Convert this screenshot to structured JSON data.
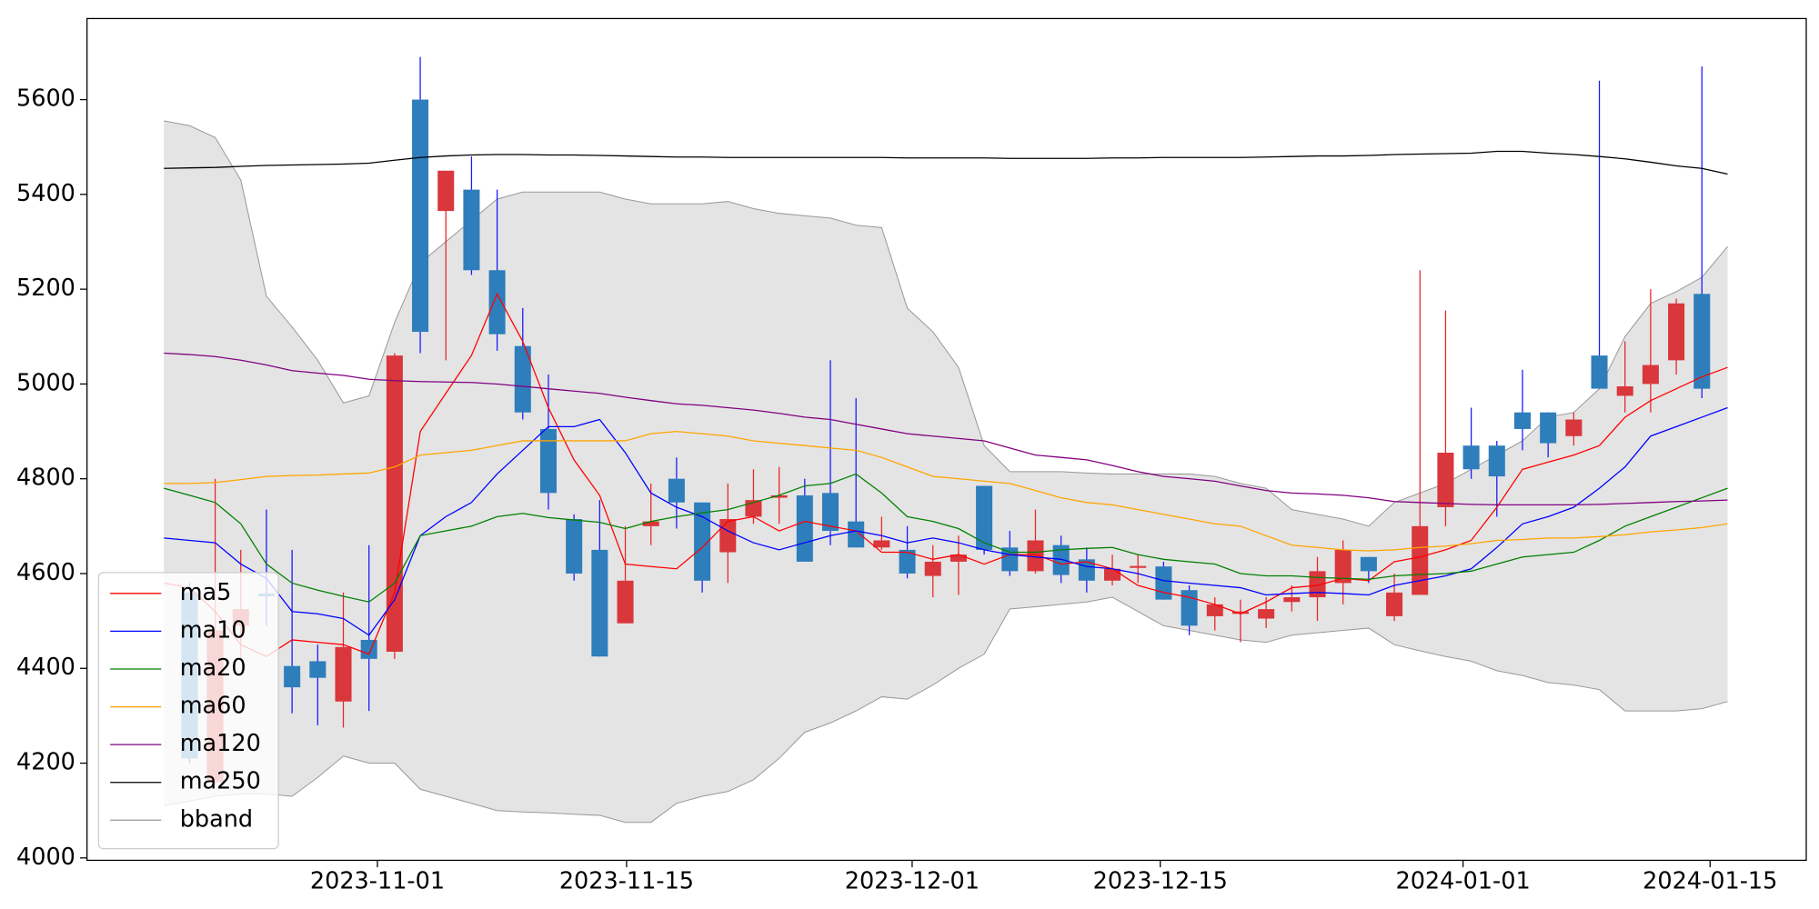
{
  "chart_data": {
    "type": "candlestick",
    "x": [
      0,
      1,
      2,
      3,
      4,
      5,
      6,
      7,
      8,
      9,
      10,
      11,
      12,
      13,
      14,
      15,
      16,
      17,
      18,
      19,
      20,
      21,
      22,
      23,
      24,
      25,
      26,
      27,
      28,
      29,
      30,
      31,
      32,
      33,
      34,
      35,
      36,
      37,
      38,
      39,
      40,
      41,
      42,
      43,
      44,
      45,
      46,
      47,
      48,
      49,
      50,
      51,
      52,
      53,
      54,
      55,
      56,
      57,
      58,
      59,
      60,
      61
    ],
    "xlim": [
      -3,
      64.07
    ],
    "xticks": [
      {
        "value": 8.33,
        "label": "2023-11-01"
      },
      {
        "value": 18.05,
        "label": "2023-11-15"
      },
      {
        "value": 29.19,
        "label": "2023-12-01"
      },
      {
        "value": 38.87,
        "label": "2023-12-15"
      },
      {
        "value": 50.68,
        "label": "2024-01-01"
      },
      {
        "value": 60.32,
        "label": "2024-01-15"
      }
    ],
    "ylim": [
      3995,
      5771
    ],
    "yticks": [
      4000,
      4200,
      4400,
      4600,
      4800,
      5000,
      5200,
      5400,
      5600
    ],
    "up_color": "#d9373b",
    "down_color": "#2e7ebb",
    "open": [
      null,
      4560,
      4160,
      4490,
      4558,
      4405,
      4415,
      4330,
      4460,
      4435,
      5600,
      5365,
      5410,
      5240,
      5080,
      4905,
      4715,
      4650,
      4495,
      4700,
      4800,
      4750,
      4645,
      4720,
      4760,
      4765,
      4770,
      4710,
      4655,
      4650,
      4595,
      4625,
      4785,
      4655,
      4605,
      4660,
      4630,
      4585,
      4612,
      4615,
      4565,
      4510,
      4515,
      4505,
      4540,
      4550,
      4580,
      4635,
      4510,
      4555,
      4740,
      4870,
      4870,
      4940,
      4940,
      4890,
      5060,
      4975,
      5000,
      5050,
      5190,
      null
    ],
    "high": [
      null,
      4580,
      4800,
      4650,
      4735,
      4650,
      4450,
      4560,
      4660,
      5065,
      5690,
      5450,
      5480,
      5410,
      5160,
      5020,
      4725,
      4755,
      4700,
      4790,
      4845,
      4750,
      4790,
      4820,
      4825,
      4800,
      5050,
      4970,
      4720,
      4700,
      4660,
      4680,
      4785,
      4690,
      4735,
      4680,
      4655,
      4640,
      4640,
      4625,
      4575,
      4550,
      4545,
      4550,
      4575,
      4635,
      4670,
      4635,
      4600,
      5240,
      5155,
      4950,
      4880,
      5030,
      4940,
      4940,
      5640,
      5090,
      5200,
      5180,
      5670,
      null
    ],
    "low": [
      null,
      4200,
      4155,
      4420,
      4490,
      4305,
      4280,
      4275,
      4310,
      4420,
      5065,
      5050,
      5230,
      5070,
      4925,
      4735,
      4585,
      4425,
      4495,
      4660,
      4695,
      4560,
      4580,
      4705,
      4705,
      4625,
      4660,
      4655,
      4650,
      4590,
      4550,
      4555,
      4640,
      4595,
      4600,
      4580,
      4560,
      4575,
      4580,
      4545,
      4470,
      4480,
      4455,
      4485,
      4520,
      4500,
      4535,
      4580,
      4500,
      4555,
      4700,
      4800,
      4720,
      4860,
      4845,
      4870,
      4990,
      4940,
      4940,
      5020,
      4970,
      null
    ],
    "close": [
      null,
      4210,
      4480,
      4525,
      4552,
      4360,
      4380,
      4445,
      4420,
      5060,
      5110,
      5450,
      5240,
      5105,
      4940,
      4770,
      4600,
      4425,
      4585,
      4710,
      4750,
      4585,
      4715,
      4755,
      4765,
      4625,
      4690,
      4655,
      4670,
      4600,
      4625,
      4640,
      4650,
      4605,
      4670,
      4597,
      4585,
      4610,
      4616,
      4545,
      4490,
      4535,
      4520,
      4525,
      4550,
      4605,
      4650,
      4605,
      4560,
      4700,
      4855,
      4820,
      4805,
      4905,
      4875,
      4925,
      4990,
      4995,
      5040,
      5170,
      4990,
      null
    ],
    "series": [
      {
        "name": "ma5",
        "color": "#ff0000",
        "values": [
          4580,
          4570,
          4520,
          4450,
          4425,
          4460,
          4455,
          4450,
          4430,
          4560,
          4900,
          4980,
          5060,
          5190,
          5090,
          4950,
          4840,
          4765,
          4620,
          4615,
          4610,
          4655,
          4710,
          4720,
          4690,
          4710,
          4700,
          4690,
          4645,
          4645,
          4630,
          4640,
          4620,
          4640,
          4640,
          4620,
          4625,
          4610,
          4575,
          4560,
          4550,
          4535,
          4515,
          4540,
          4570,
          4575,
          4590,
          4585,
          4625,
          4635,
          4650,
          4670,
          4740,
          4820,
          4835,
          4850,
          4870,
          4930,
          4965,
          4990,
          5015,
          5035
        ]
      },
      {
        "name": "ma10",
        "color": "#0000ff",
        "values": [
          4675,
          4670,
          4665,
          4620,
          4590,
          4520,
          4515,
          4505,
          4470,
          4545,
          4680,
          4720,
          4750,
          4810,
          4860,
          4910,
          4910,
          4925,
          4855,
          4770,
          4740,
          4720,
          4690,
          4665,
          4650,
          4665,
          4680,
          4690,
          4680,
          4665,
          4675,
          4665,
          4650,
          4640,
          4635,
          4630,
          4615,
          4610,
          4600,
          4585,
          4580,
          4575,
          4570,
          4555,
          4558,
          4560,
          4558,
          4555,
          4575,
          4585,
          4595,
          4610,
          4655,
          4705,
          4720,
          4740,
          4780,
          4825,
          4890,
          4910,
          4930,
          4950
        ]
      },
      {
        "name": "ma20",
        "color": "#008000",
        "values": [
          4780,
          4765,
          4750,
          4705,
          4620,
          4580,
          4565,
          4552,
          4540,
          4580,
          4680,
          4690,
          4700,
          4720,
          4727,
          4718,
          4713,
          4708,
          4695,
          4710,
          4720,
          4728,
          4735,
          4750,
          4765,
          4785,
          4790,
          4810,
          4770,
          4720,
          4710,
          4695,
          4665,
          4645,
          4645,
          4650,
          4653,
          4655,
          4640,
          4630,
          4625,
          4620,
          4600,
          4595,
          4595,
          4592,
          4590,
          4588,
          4595,
          4598,
          4600,
          4605,
          4620,
          4635,
          4640,
          4645,
          4670,
          4700,
          4720,
          4740,
          4760,
          4780
        ]
      },
      {
        "name": "ma60",
        "color": "#ffa500",
        "values": [
          4790,
          4790,
          4792,
          4798,
          4805,
          4807,
          4808,
          4810,
          4812,
          4825,
          4850,
          4855,
          4860,
          4870,
          4880,
          4880,
          4880,
          4880,
          4880,
          4895,
          4900,
          4895,
          4890,
          4880,
          4875,
          4870,
          4865,
          4860,
          4845,
          4825,
          4805,
          4800,
          4795,
          4790,
          4775,
          4760,
          4750,
          4745,
          4735,
          4725,
          4715,
          4705,
          4700,
          4680,
          4660,
          4655,
          4650,
          4648,
          4650,
          4655,
          4658,
          4663,
          4670,
          4672,
          4675,
          4675,
          4678,
          4682,
          4688,
          4692,
          4697,
          4705
        ]
      },
      {
        "name": "ma120",
        "color": "#800080",
        "values": [
          5065,
          5062,
          5058,
          5050,
          5040,
          5028,
          5023,
          5018,
          5010,
          5007,
          5005,
          5004,
          5003,
          5000,
          4995,
          4990,
          4985,
          4980,
          4972,
          4965,
          4958,
          4955,
          4950,
          4945,
          4938,
          4930,
          4925,
          4915,
          4905,
          4895,
          4890,
          4885,
          4880,
          4865,
          4850,
          4845,
          4840,
          4828,
          4815,
          4805,
          4800,
          4795,
          4785,
          4775,
          4770,
          4768,
          4765,
          4760,
          4752,
          4750,
          4748,
          4746,
          4745,
          4745,
          4745,
          4745,
          4746,
          4748,
          4750,
          4752,
          4753,
          4755
        ]
      },
      {
        "name": "ma250",
        "color": "#000000",
        "values": [
          5455,
          5456,
          5457,
          5459,
          5461,
          5462,
          5463,
          5464,
          5466,
          5472,
          5478,
          5481,
          5483,
          5484,
          5484,
          5483,
          5483,
          5482,
          5481,
          5480,
          5479,
          5479,
          5478,
          5478,
          5478,
          5478,
          5478,
          5478,
          5478,
          5477,
          5477,
          5477,
          5477,
          5476,
          5476,
          5476,
          5476,
          5477,
          5477,
          5478,
          5478,
          5478,
          5478,
          5479,
          5480,
          5481,
          5481,
          5482,
          5484,
          5485,
          5486,
          5487,
          5491,
          5491,
          5487,
          5484,
          5480,
          5475,
          5468,
          5460,
          5455,
          5443
        ]
      }
    ],
    "bband": {
      "name": "bband",
      "color": "#999999",
      "fill": "#e4e4e4",
      "upper": [
        5555,
        5545,
        5520,
        5430,
        5185,
        5120,
        5050,
        4960,
        4975,
        5130,
        5255,
        5300,
        5345,
        5390,
        5405,
        5405,
        5405,
        5405,
        5390,
        5380,
        5380,
        5380,
        5385,
        5370,
        5360,
        5355,
        5350,
        5335,
        5330,
        5160,
        5110,
        5035,
        4870,
        4815,
        4815,
        4815,
        4812,
        4810,
        4810,
        4810,
        4810,
        4805,
        4790,
        4780,
        4735,
        4725,
        4715,
        4700,
        4750,
        4770,
        4790,
        4820,
        4850,
        4880,
        4930,
        4940,
        4990,
        5100,
        5170,
        5195,
        5225,
        5290
      ],
      "lower": [
        4110,
        4120,
        4130,
        4135,
        4135,
        4130,
        4170,
        4215,
        4200,
        4200,
        4145,
        4130,
        4115,
        4100,
        4097,
        4095,
        4092,
        4090,
        4075,
        4075,
        4115,
        4130,
        4140,
        4165,
        4210,
        4265,
        4285,
        4310,
        4340,
        4335,
        4365,
        4400,
        4430,
        4525,
        4530,
        4535,
        4540,
        4550,
        4520,
        4490,
        4480,
        4470,
        4460,
        4455,
        4470,
        4475,
        4480,
        4485,
        4450,
        4437,
        4425,
        4415,
        4395,
        4385,
        4370,
        4365,
        4355,
        4310,
        4310,
        4310,
        4315,
        4330
      ]
    },
    "legend": "lower left"
  }
}
